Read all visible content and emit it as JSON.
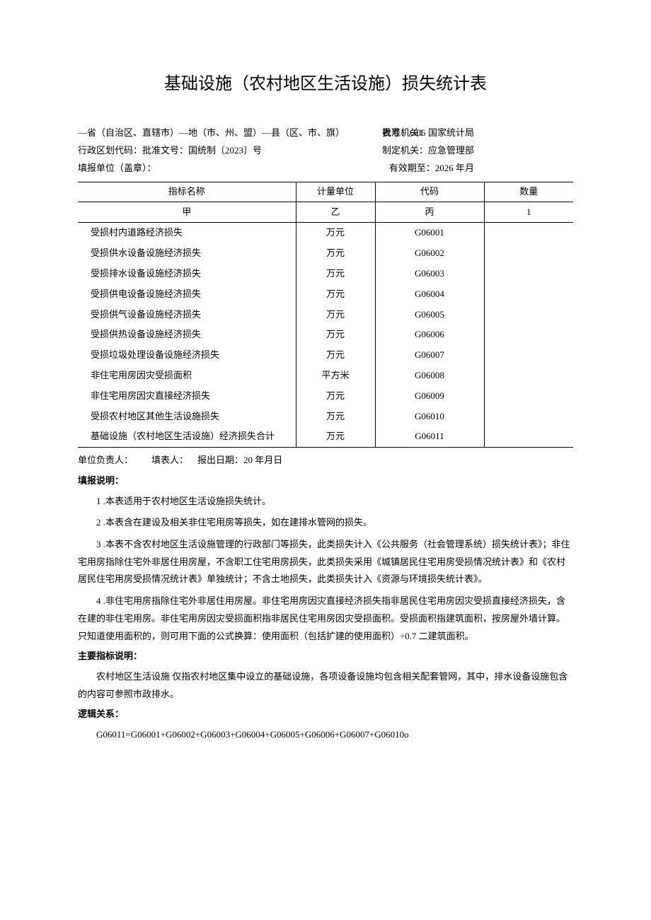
{
  "title": "基础设施（农村地区生活设施）损失统计表",
  "meta": {
    "form_no_label": "表号：",
    "form_no": "G06",
    "formulating_label": "制定机关：",
    "formulating": "应急管理部",
    "approving_label": "批准机关：",
    "approving": "国家统计局",
    "region_line": "—省（自治区、直辖市）—地（市、州、盟）—县（区、市、旗）",
    "admin_code_line": "行政区划代码：批准文号：国统制〔2023〕号",
    "report_unit_label": "填报单位（盖章）：",
    "valid_until_label": "有效期至：",
    "valid_until": "2026 年月"
  },
  "table": {
    "headers": {
      "name": "指标名称",
      "unit": "计量单位",
      "code": "代码",
      "qty": "数量"
    },
    "subheaders": {
      "name": "甲",
      "unit": "乙",
      "code": "丙",
      "qty": "1"
    },
    "rows": [
      {
        "name": "受损村内道路经济损失",
        "unit": "万元",
        "code": "G06001",
        "qty": ""
      },
      {
        "name": "受损供水设备设施经济损失",
        "unit": "万元",
        "code": "G06002",
        "qty": ""
      },
      {
        "name": "受损排水设备设施经济损失",
        "unit": "万元",
        "code": "G06003",
        "qty": ""
      },
      {
        "name": "受损供电设备设施经济损失",
        "unit": "万元",
        "code": "G06004",
        "qty": ""
      },
      {
        "name": "受损供气设备设施经济损失",
        "unit": "万元",
        "code": "G06005",
        "qty": ""
      },
      {
        "name": "受损供热设备设施经济损失",
        "unit": "万元",
        "code": "G06006",
        "qty": ""
      },
      {
        "name": "受损垃圾处理设备设施经济损失",
        "unit": "万元",
        "code": "G06007",
        "qty": ""
      },
      {
        "name": "非住宅用房因灾受损面积",
        "unit": "平方米",
        "code": "G06008",
        "qty": ""
      },
      {
        "name": "非住宅用房因灾直接经济损失",
        "unit": "万元",
        "code": "G06009",
        "qty": ""
      },
      {
        "name": "受损农村地区其他生活设施损失",
        "unit": "万元",
        "code": "G06010",
        "qty": ""
      },
      {
        "name": "基础设施（农村地区生活设施）经济损失合计",
        "unit": "万元",
        "code": "G06011",
        "qty": ""
      }
    ]
  },
  "footer": {
    "signatures": "单位负责人：  填表人： 报出日期：20 年月日"
  },
  "sections": {
    "fill_instructions_title": "填报说明：",
    "fill_instructions": [
      "1 .本表适用于农村地区生活设施损失统计。",
      "2 .本表含在建设及相关非住宅用房等损失，如在建排水管网的损失。",
      "3 .本表不含农村地区生活设施管理的行政部门等损失，此类损失计入《公共服务（社会管理系统）损失统计表》；非住宅用房指除住宅外非居住用房屋，不含职工住宅用房损失，此类损失采用《城镇居民住宅用房受损情况统计表》和《农村居民住宅用房受损情况统计表》单独统计；不含土地损失，此类损失计入《资源与环境损失统计表》。",
      "4 .非住宅用房指除住宅外非居住用房屋。非住宅用房因灾直接经济损失指非居民住宅用房因灾受损直接经济损失，含在建的非住宅用房。非住宅用房因灾受损面积指非居民住宅用房因灾受损面积。受损面积指建筑面积，按房屋外墙计算。只知道使用面积的，则可用下面的公式换算：使用面积（包括扩建的使用面积）÷0.7 二建筑面积。"
    ],
    "key_indicators_title": "主要指标说明：",
    "key_indicators": [
      "农村地区生活设施 仅指农村地区集中设立的基础设施，各项设备设施均包含相关配套管网，其中，排水设备设施包含的内容可参照市政排水。"
    ],
    "logic_title": "逻辑关系：",
    "logic": [
      "G06011=G06001+G06002+G06003+G06004+G06005+G06006+G06007+G06010o"
    ]
  },
  "style": {
    "background_color": "#ffffff",
    "text_color": "#000000",
    "border_color": "#000000",
    "title_fontsize": 24,
    "body_fontsize": 13
  }
}
